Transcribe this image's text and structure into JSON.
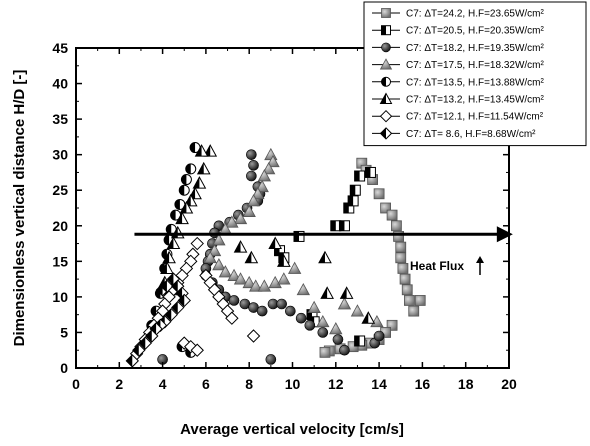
{
  "chart_data": {
    "type": "scatter",
    "title": "",
    "xlabel": "Average vertical velocity [cm/s]",
    "ylabel": "Dimensionless vertical distance H/D [-]",
    "xlim": [
      0,
      20
    ],
    "ylim": [
      0,
      45
    ],
    "xticks": [
      "0",
      "2",
      "4",
      "6",
      "8",
      "10",
      "12",
      "14",
      "16",
      "18",
      "20"
    ],
    "yticks": [
      "0",
      "5",
      "10",
      "15",
      "20",
      "25",
      "30",
      "35",
      "40",
      "45"
    ],
    "grid": false,
    "legend_position": "top-right",
    "annotation": {
      "text": "Heat Flux",
      "arrow_y": 18.8,
      "arrow_x": [
        2.7,
        19.9
      ]
    },
    "series": [
      {
        "name": "C7: ΔT=24.2, H.F=23.65W/cm²",
        "marker": "square-filled",
        "color": "#8a8a8a",
        "x": [
          13.2,
          13.4,
          13.7,
          14.0,
          14.3,
          14.6,
          14.8,
          14.9,
          15.0,
          15.0,
          15.1,
          15.2,
          15.3,
          15.4,
          15.6,
          15.9,
          14.6,
          14.3,
          14.0,
          13.6,
          13.2,
          12.8,
          12.2,
          11.7,
          11.5
        ],
        "y": [
          28.8,
          27.8,
          26.5,
          24.5,
          22.5,
          21.5,
          20.0,
          18.5,
          17.0,
          15.5,
          14.0,
          12.5,
          11.0,
          9.5,
          8.0,
          9.5,
          6.0,
          5.0,
          4.0,
          3.5,
          3.2,
          3.0,
          2.7,
          2.4,
          2.2
        ]
      },
      {
        "name": "C7: ΔT=20.5, H.F=20.35W/cm²",
        "marker": "square-half",
        "color": "#000000",
        "x": [
          12.0,
          13.1,
          13.6,
          12.9,
          12.6,
          12.4,
          12.8,
          9.4,
          9.6,
          10.3,
          10.9,
          11.0,
          13.1
        ],
        "y": [
          20.0,
          27.0,
          27.5,
          25.0,
          22.5,
          20.0,
          23.5,
          16.5,
          15.5,
          18.5,
          7.5,
          6.5,
          3.8
        ]
      },
      {
        "name": "C7: ΔT=18.2, H.F=19.35W/cm²",
        "marker": "circle-filled",
        "color": "#333333",
        "x": [
          8.1,
          8.2,
          8.1,
          8.4,
          8.5,
          8.4,
          7.9,
          7.5,
          7.1,
          6.6,
          6.4,
          6.3,
          6.2,
          6.1,
          6.0,
          6.0,
          6.3,
          6.6,
          6.9,
          7.3,
          7.8,
          8.2,
          8.6,
          9.1,
          9.5,
          9.9,
          10.4,
          10.8,
          11.4,
          12.1,
          12.4,
          13.8,
          14.0,
          9.0,
          4.0
        ],
        "y": [
          30.0,
          28.5,
          27.0,
          25.5,
          24.5,
          23.5,
          22.5,
          21.5,
          20.5,
          20.0,
          19.0,
          17.5,
          16.0,
          15.0,
          14.0,
          13.0,
          12.0,
          11.0,
          10.0,
          9.5,
          9.0,
          8.5,
          8.0,
          9.0,
          9.0,
          8.0,
          7.0,
          6.0,
          5.0,
          4.0,
          2.5,
          3.5,
          4.5,
          1.2,
          1.2
        ]
      },
      {
        "name": "C7: ΔT=17.5, H.F=18.32W/cm²",
        "marker": "triangle-filled",
        "color": "#8a8a8a",
        "x": [
          9.0,
          9.1,
          8.9,
          8.7,
          8.6,
          8.4,
          8.2,
          8.0,
          7.6,
          7.2,
          6.9,
          6.6,
          6.4,
          6.2,
          6.6,
          6.9,
          7.3,
          7.6,
          8.0,
          8.3,
          8.7,
          9.2,
          9.6,
          10.1,
          10.5,
          11.0,
          11.4,
          12.0,
          12.4,
          13.0,
          13.9
        ],
        "y": [
          30.0,
          29.0,
          28.0,
          27.0,
          25.5,
          24.5,
          23.5,
          22.0,
          21.0,
          20.5,
          19.5,
          18.0,
          16.5,
          15.5,
          14.5,
          13.5,
          13.0,
          12.5,
          12.0,
          11.5,
          11.5,
          12.0,
          12.5,
          14.0,
          11.0,
          8.5,
          6.5,
          5.5,
          9.0,
          8.0,
          6.5
        ]
      },
      {
        "name": "C7: ΔT=13.5, H.F=13.88W/cm²",
        "marker": "circle-half",
        "color": "#000000",
        "x": [
          5.5,
          5.3,
          5.1,
          5.0,
          4.8,
          4.6,
          4.4,
          4.3,
          4.2,
          4.1,
          3.9,
          3.7,
          3.5,
          4.9,
          5.3
        ],
        "y": [
          31.0,
          28.0,
          26.5,
          25.0,
          23.0,
          21.5,
          19.5,
          18.0,
          16.0,
          14.0,
          10.5,
          8.0,
          6.0,
          3.0,
          2.2
        ]
      },
      {
        "name": "C7: ΔT=13.2, H.F=13.45W/cm²",
        "marker": "triangle-half",
        "color": "#000000",
        "x": [
          6.2,
          5.8,
          5.9,
          5.7,
          5.5,
          5.3,
          5.1,
          4.9,
          4.7,
          4.5,
          4.3,
          4.2,
          4.1,
          4.4,
          7.6,
          8.1,
          9.2,
          9.6,
          11.5,
          11.6,
          12.5,
          13.5
        ],
        "y": [
          30.5,
          30.5,
          28.0,
          26.0,
          24.5,
          23.5,
          22.5,
          21.0,
          19.0,
          17.5,
          15.5,
          14.0,
          12.0,
          11.0,
          17.0,
          15.5,
          17.5,
          15.0,
          15.5,
          10.5,
          10.5,
          7.0
        ]
      },
      {
        "name": "C7: ΔT=12.1, H.F=11.54W/cm²",
        "marker": "diamond-open",
        "color": "#000000",
        "x": [
          5.6,
          5.4,
          5.3,
          5.1,
          4.9,
          4.7,
          4.5,
          4.3,
          4.1,
          4.0,
          3.8,
          3.6,
          3.4,
          3.2,
          3.0,
          2.8,
          6.0,
          6.2,
          6.4,
          6.6,
          6.8,
          7.0,
          7.2,
          5.0,
          5.3,
          5.6,
          8.2
        ],
        "y": [
          17.5,
          16.0,
          15.0,
          14.0,
          13.0,
          12.0,
          11.0,
          10.0,
          9.0,
          8.0,
          7.0,
          6.0,
          5.0,
          4.0,
          3.0,
          2.0,
          13.0,
          12.0,
          11.0,
          10.0,
          9.0,
          8.0,
          7.0,
          3.5,
          3.0,
          2.5,
          4.5
        ]
      },
      {
        "name": "C7: ΔT= 8.6, H.F=8.68W/cm²",
        "marker": "diamond-half",
        "color": "#000000",
        "x": [
          4.0,
          4.2,
          4.5,
          4.7,
          4.9,
          5.0,
          4.7,
          4.4,
          4.1,
          3.9,
          3.7,
          3.5,
          3.2,
          2.9,
          2.6
        ],
        "y": [
          11.0,
          11.5,
          12.5,
          11.5,
          10.5,
          9.5,
          8.5,
          7.5,
          6.5,
          6.0,
          5.5,
          4.5,
          3.5,
          2.5,
          1.0
        ]
      }
    ]
  }
}
